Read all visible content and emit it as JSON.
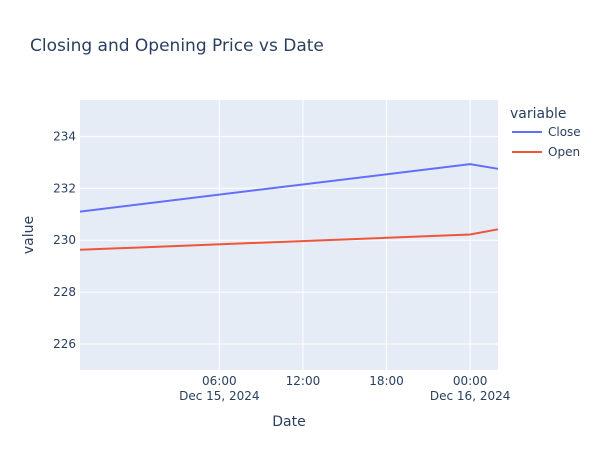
{
  "chart_data": {
    "type": "line",
    "title": "Closing and Opening Price vs Date",
    "xlabel": "Date",
    "ylabel": "value",
    "x_range": [
      "2024-12-14 20:00",
      "2024-12-16 02:00"
    ],
    "ylim": [
      225.0,
      235.4
    ],
    "x_ticks": [
      {
        "t": "2024-12-15 06:00",
        "label": "06:00",
        "sublabel": "Dec 15, 2024"
      },
      {
        "t": "2024-12-15 12:00",
        "label": "12:00",
        "sublabel": ""
      },
      {
        "t": "2024-12-15 18:00",
        "label": "18:00",
        "sublabel": ""
      },
      {
        "t": "2024-12-16 00:00",
        "label": "00:00",
        "sublabel": "Dec 16, 2024"
      }
    ],
    "y_ticks": [
      226,
      228,
      230,
      232,
      234
    ],
    "grid": true,
    "legend": {
      "title": "variable",
      "placement": "top-right"
    },
    "series": [
      {
        "name": "Close",
        "color": "#636efa",
        "points": [
          {
            "x": "2024-12-14 20:00",
            "y": 231.1
          },
          {
            "x": "2024-12-16 00:00",
            "y": 232.93
          },
          {
            "x": "2024-12-16 02:00",
            "y": 232.75
          }
        ]
      },
      {
        "name": "Open",
        "color": "#ef553b",
        "points": [
          {
            "x": "2024-12-14 20:00",
            "y": 229.63
          },
          {
            "x": "2024-12-16 00:00",
            "y": 230.22
          },
          {
            "x": "2024-12-16 02:00",
            "y": 230.42
          }
        ]
      }
    ]
  }
}
